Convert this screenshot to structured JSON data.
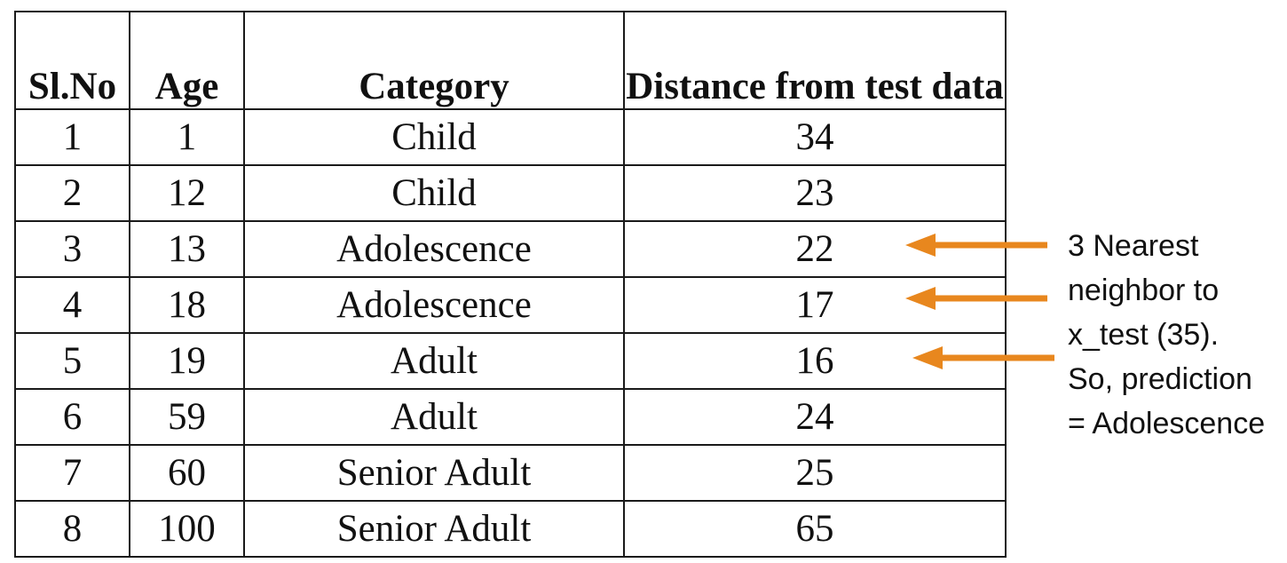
{
  "table": {
    "headers": [
      "Sl.No",
      "Age",
      "Category",
      "Distance from test data"
    ],
    "rows": [
      [
        "1",
        "1",
        "Child",
        "34"
      ],
      [
        "2",
        "12",
        "Child",
        "23"
      ],
      [
        "3",
        "13",
        "Adolescence",
        "22"
      ],
      [
        "4",
        "18",
        "Adolescence",
        "17"
      ],
      [
        "5",
        "19",
        "Adult",
        "16"
      ],
      [
        "6",
        "59",
        "Adult",
        "24"
      ],
      [
        "7",
        "60",
        "Senior Adult",
        "25"
      ],
      [
        "8",
        "100",
        "Senior Adult",
        "65"
      ]
    ]
  },
  "annotation": {
    "lines": [
      "3 Nearest",
      "neighbor to",
      "x_test (35).",
      "So, prediction",
      "= Adolescence"
    ]
  },
  "colors": {
    "arrow": "#E8871E",
    "border": "#1a1a1a",
    "text": "#111111"
  }
}
